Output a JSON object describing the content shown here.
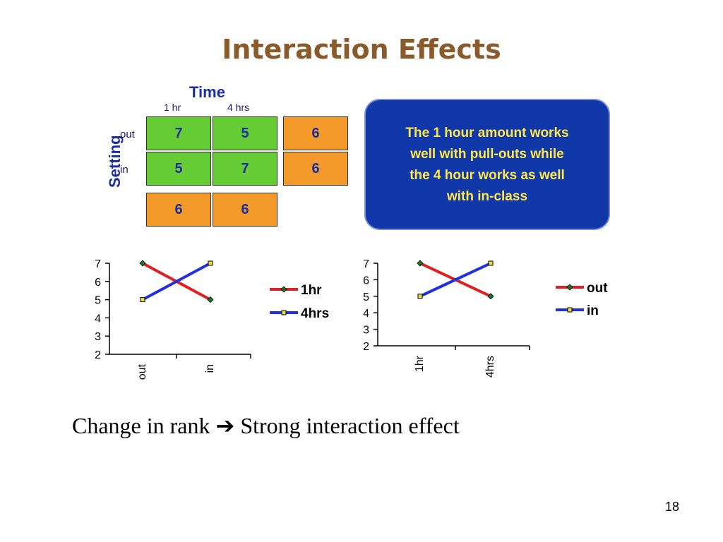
{
  "title": "Interaction Effects",
  "table": {
    "column_title": "Time",
    "row_title": "Setting",
    "columns": [
      "1 hr",
      "4 hrs"
    ],
    "rows": [
      "out",
      "in"
    ],
    "cells": [
      [
        "7",
        "5"
      ],
      [
        "5",
        "7"
      ]
    ],
    "row_means": [
      "6",
      "6"
    ],
    "column_means": [
      "6",
      "6"
    ]
  },
  "callout": {
    "lines": [
      "The 1 hour amount works",
      "well with pull-outs while",
      "the 4 hour works as well",
      "with in-class"
    ]
  },
  "chart_data": [
    {
      "type": "line",
      "categories": [
        "out",
        "in"
      ],
      "ylim": [
        2,
        7
      ],
      "yticks": [
        "7",
        "6",
        "5",
        "4",
        "3",
        "2"
      ],
      "series": [
        {
          "name": "1hr",
          "values": [
            7,
            5
          ],
          "color": "#e02020",
          "marker": "diamond",
          "marker_color": "#1a7a1a"
        },
        {
          "name": "4hrs",
          "values": [
            5,
            7
          ],
          "color": "#2030e0",
          "marker": "square",
          "marker_color": "#e8e040"
        }
      ],
      "legend": "right",
      "grid": false
    },
    {
      "type": "line",
      "categories": [
        "1hr",
        "4hrs"
      ],
      "ylim": [
        2,
        7
      ],
      "yticks": [
        "7",
        "6",
        "5",
        "4",
        "3",
        "2"
      ],
      "series": [
        {
          "name": "out",
          "values": [
            7,
            5
          ],
          "color": "#e02020",
          "marker": "diamond",
          "marker_color": "#1a7a1a"
        },
        {
          "name": "in",
          "values": [
            5,
            7
          ],
          "color": "#2030e0",
          "marker": "square",
          "marker_color": "#e8e040"
        }
      ],
      "legend": "right",
      "grid": false
    }
  ],
  "footer": {
    "left": "Change in rank",
    "arrow": "➔",
    "right": "Strong interaction effect"
  },
  "page_number": "18"
}
